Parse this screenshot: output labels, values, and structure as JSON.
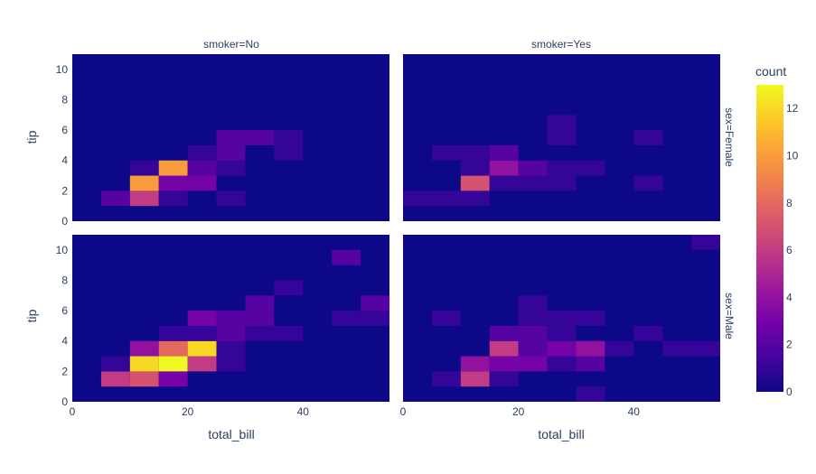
{
  "chart_data": {
    "type": "heatmap",
    "subtype": "density-heatmap-faceted",
    "xlabel": "total_bill",
    "ylabel": "tip",
    "x_ticks": [
      "0",
      "20",
      "40"
    ],
    "y_ticks": [
      "0",
      "2",
      "4",
      "6",
      "8",
      "10"
    ],
    "xlim": [
      0,
      55
    ],
    "ylim": [
      0,
      11
    ],
    "x_bins": [
      0,
      5,
      10,
      15,
      20,
      25,
      30,
      35,
      40,
      45,
      50,
      55
    ],
    "y_bins": [
      0,
      1,
      2,
      3,
      4,
      5,
      6,
      7,
      8,
      9,
      10,
      11
    ],
    "column_labels": [
      "smoker=No",
      "smoker=Yes"
    ],
    "row_labels": [
      "sex=Female",
      "sex=Male"
    ],
    "colorbar": {
      "title": "count",
      "ticks": [
        "0",
        "2",
        "4",
        "6",
        "8",
        "10",
        "12"
      ],
      "range": [
        0,
        13
      ],
      "colorscale": [
        "#0d0887",
        "#46039f",
        "#7201a8",
        "#9c179e",
        "#bd3786",
        "#d8576b",
        "#ed7953",
        "#fb9f3a",
        "#fdca26",
        "#f0f921"
      ]
    },
    "facets": [
      {
        "row": "sex=Female",
        "col": "smoker=No",
        "z": [
          [
            0,
            0,
            0,
            0,
            0,
            0,
            0,
            0,
            0,
            0,
            0
          ],
          [
            0,
            2,
            6,
            1,
            0,
            1,
            0,
            0,
            0,
            0,
            0
          ],
          [
            0,
            0,
            10,
            3,
            3,
            0,
            0,
            0,
            0,
            0,
            0
          ],
          [
            0,
            0,
            1,
            10,
            2,
            1,
            0,
            0,
            0,
            0,
            0
          ],
          [
            0,
            0,
            0,
            0,
            1,
            2,
            0,
            1,
            0,
            0,
            0
          ],
          [
            0,
            0,
            0,
            0,
            0,
            2,
            2,
            1,
            0,
            0,
            0
          ],
          [
            0,
            0,
            0,
            0,
            0,
            0,
            0,
            0,
            0,
            0,
            0
          ],
          [
            0,
            0,
            0,
            0,
            0,
            0,
            0,
            0,
            0,
            0,
            0
          ],
          [
            0,
            0,
            0,
            0,
            0,
            0,
            0,
            0,
            0,
            0,
            0
          ],
          [
            0,
            0,
            0,
            0,
            0,
            0,
            0,
            0,
            0,
            0,
            0
          ],
          [
            0,
            0,
            0,
            0,
            0,
            0,
            0,
            0,
            0,
            0,
            0
          ]
        ]
      },
      {
        "row": "sex=Female",
        "col": "smoker=Yes",
        "z": [
          [
            0,
            0,
            0,
            0,
            0,
            0,
            0,
            0,
            0,
            0,
            0
          ],
          [
            1,
            1,
            1,
            0,
            0,
            0,
            0,
            0,
            0,
            0,
            0
          ],
          [
            0,
            0,
            7,
            1,
            1,
            1,
            0,
            0,
            1,
            0,
            0
          ],
          [
            0,
            0,
            1,
            4,
            2,
            1,
            1,
            0,
            0,
            0,
            0
          ],
          [
            0,
            1,
            1,
            2,
            0,
            0,
            0,
            0,
            0,
            0,
            0
          ],
          [
            0,
            0,
            0,
            0,
            0,
            1,
            0,
            0,
            1,
            0,
            0
          ],
          [
            0,
            0,
            0,
            0,
            0,
            1,
            0,
            0,
            0,
            0,
            0
          ],
          [
            0,
            0,
            0,
            0,
            0,
            0,
            0,
            0,
            0,
            0,
            0
          ],
          [
            0,
            0,
            0,
            0,
            0,
            0,
            0,
            0,
            0,
            0,
            0
          ],
          [
            0,
            0,
            0,
            0,
            0,
            0,
            0,
            0,
            0,
            0,
            0
          ],
          [
            0,
            0,
            0,
            0,
            0,
            0,
            0,
            0,
            0,
            0,
            0
          ]
        ]
      },
      {
        "row": "sex=Male",
        "col": "smoker=No",
        "z": [
          [
            0,
            0,
            0,
            0,
            0,
            0,
            0,
            0,
            0,
            0,
            0
          ],
          [
            0,
            6,
            7,
            3,
            0,
            0,
            0,
            0,
            0,
            0,
            0
          ],
          [
            0,
            1,
            12,
            13,
            6,
            1,
            0,
            0,
            0,
            0,
            0
          ],
          [
            0,
            0,
            4,
            8,
            12,
            1,
            0,
            0,
            0,
            0,
            0
          ],
          [
            0,
            0,
            0,
            1,
            1,
            2,
            1,
            1,
            0,
            0,
            0
          ],
          [
            0,
            0,
            0,
            0,
            3,
            2,
            2,
            0,
            0,
            1,
            1
          ],
          [
            0,
            0,
            0,
            0,
            0,
            0,
            2,
            0,
            0,
            0,
            2
          ],
          [
            0,
            0,
            0,
            0,
            0,
            0,
            0,
            1,
            0,
            0,
            0
          ],
          [
            0,
            0,
            0,
            0,
            0,
            0,
            0,
            0,
            0,
            0,
            0
          ],
          [
            0,
            0,
            0,
            0,
            0,
            0,
            0,
            0,
            0,
            2,
            0
          ],
          [
            0,
            0,
            0,
            0,
            0,
            0,
            0,
            0,
            0,
            0,
            0
          ]
        ]
      },
      {
        "row": "sex=Male",
        "col": "smoker=Yes",
        "z": [
          [
            0,
            0,
            0,
            0,
            0,
            0,
            1,
            0,
            0,
            0,
            0
          ],
          [
            0,
            1,
            6,
            1,
            0,
            0,
            0,
            0,
            0,
            0,
            0
          ],
          [
            0,
            0,
            4,
            3,
            3,
            1,
            2,
            0,
            0,
            0,
            0
          ],
          [
            0,
            0,
            0,
            6,
            2,
            3,
            4,
            1,
            0,
            1,
            1
          ],
          [
            0,
            0,
            0,
            2,
            2,
            1,
            0,
            0,
            1,
            0,
            0
          ],
          [
            0,
            1,
            0,
            0,
            1,
            1,
            1,
            0,
            0,
            0,
            0
          ],
          [
            0,
            0,
            0,
            0,
            1,
            0,
            0,
            0,
            0,
            0,
            0
          ],
          [
            0,
            0,
            0,
            0,
            0,
            0,
            0,
            0,
            0,
            0,
            0
          ],
          [
            0,
            0,
            0,
            0,
            0,
            0,
            0,
            0,
            0,
            0,
            0
          ],
          [
            0,
            0,
            0,
            0,
            0,
            0,
            0,
            0,
            0,
            0,
            0
          ],
          [
            0,
            0,
            0,
            0,
            0,
            0,
            0,
            0,
            0,
            0,
            1
          ]
        ]
      }
    ]
  }
}
